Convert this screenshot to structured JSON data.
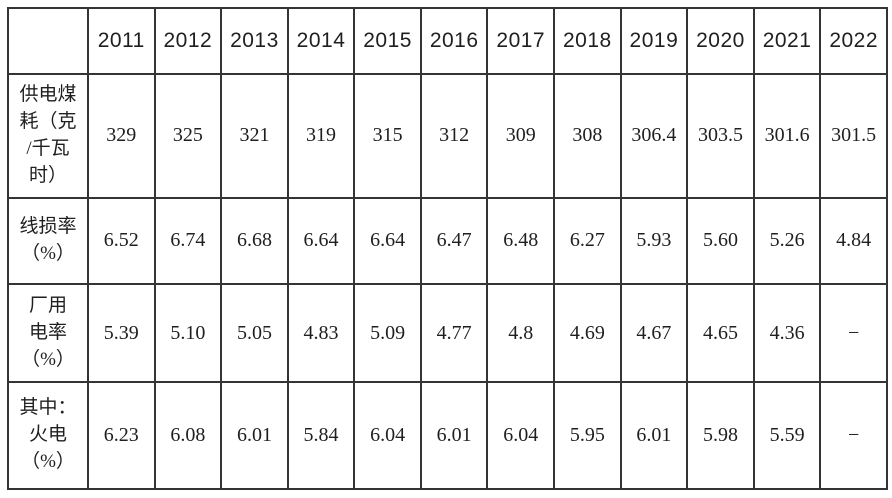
{
  "table": {
    "corner_label": "",
    "years": [
      "2011",
      "2012",
      "2013",
      "2014",
      "2015",
      "2016",
      "2017",
      "2018",
      "2019",
      "2020",
      "2021",
      "2022"
    ],
    "rows": [
      {
        "label": "供电煤\n耗（克\n/千瓦\n时）",
        "values": [
          "329",
          "325",
          "321",
          "319",
          "315",
          "312",
          "309",
          "308",
          "306.4",
          "303.5",
          "301.6",
          "301.5"
        ]
      },
      {
        "label": "线损率\n（%）",
        "values": [
          "6.52",
          "6.74",
          "6.68",
          "6.64",
          "6.64",
          "6.47",
          "6.48",
          "6.27",
          "5.93",
          "5.60",
          "5.26",
          "4.84"
        ]
      },
      {
        "label": "厂用\n电率\n（%）",
        "values": [
          "5.39",
          "5.10",
          "5.05",
          "4.83",
          "5.09",
          "4.77",
          "4.8",
          "4.69",
          "4.67",
          "4.65",
          "4.36",
          "−"
        ]
      },
      {
        "label": "其中：\n火电\n（%）",
        "values": [
          "6.23",
          "6.08",
          "6.01",
          "5.84",
          "6.04",
          "6.01",
          "6.04",
          "5.95",
          "6.01",
          "5.98",
          "5.59",
          "−"
        ]
      }
    ],
    "colors": {
      "border": "#343434",
      "text": "#1f1f1f",
      "background": "#ffffff"
    }
  }
}
